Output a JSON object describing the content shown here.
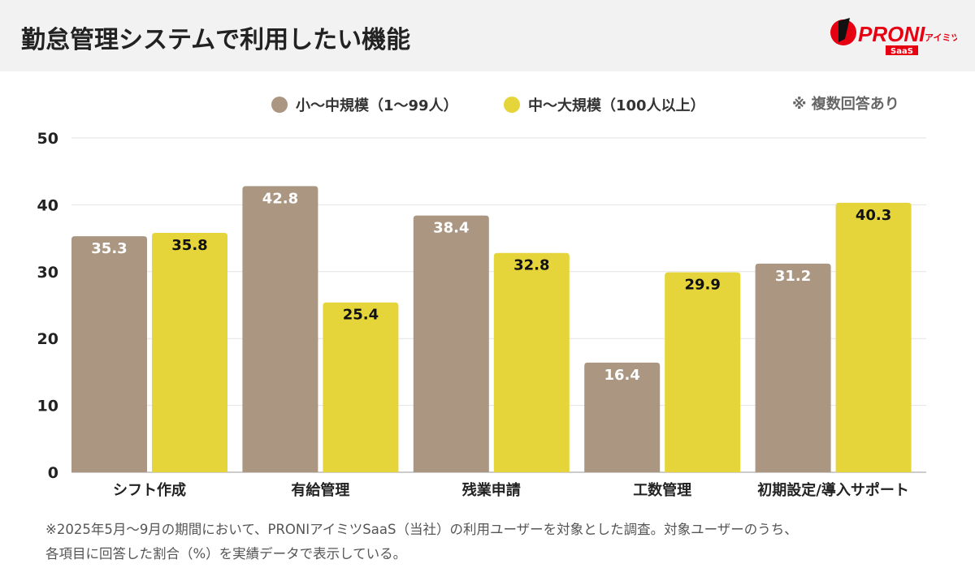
{
  "header": {
    "title": "勤怠管理システムで利用したい機能",
    "logo_text": "PRONIアイミツ SaaS"
  },
  "note": "※ 複数回答あり",
  "footnote": [
    "※2025年5月〜9月の期間において、PRONIアイミツSaaS（当社）の利用ユーザーを対象とした調査。対象ユーザーのうち、",
    "各項目に回答した割合（%）を実績データで表示している。"
  ],
  "colors": {
    "small": "#ab9682",
    "large": "#e5d53a",
    "header_bg": "#f2f2f2",
    "logo_red": "#e60012"
  },
  "chart_data": {
    "type": "bar",
    "title": "勤怠管理システムで利用したい機能",
    "categories": [
      "シフト作成",
      "有給管理",
      "残業申請",
      "工数管理",
      "初期設定/導入サポート"
    ],
    "series": [
      {
        "name": "小〜中規模（1〜99人）",
        "values": [
          35.3,
          42.8,
          38.4,
          16.4,
          31.2
        ]
      },
      {
        "name": "中〜大規模（100人以上）",
        "values": [
          35.8,
          25.4,
          32.8,
          29.9,
          40.3
        ]
      }
    ],
    "yticks": [
      "0",
      "10",
      "20",
      "30",
      "40",
      "50"
    ],
    "ylim": [
      0,
      50
    ],
    "grid": true,
    "legend": "top"
  }
}
